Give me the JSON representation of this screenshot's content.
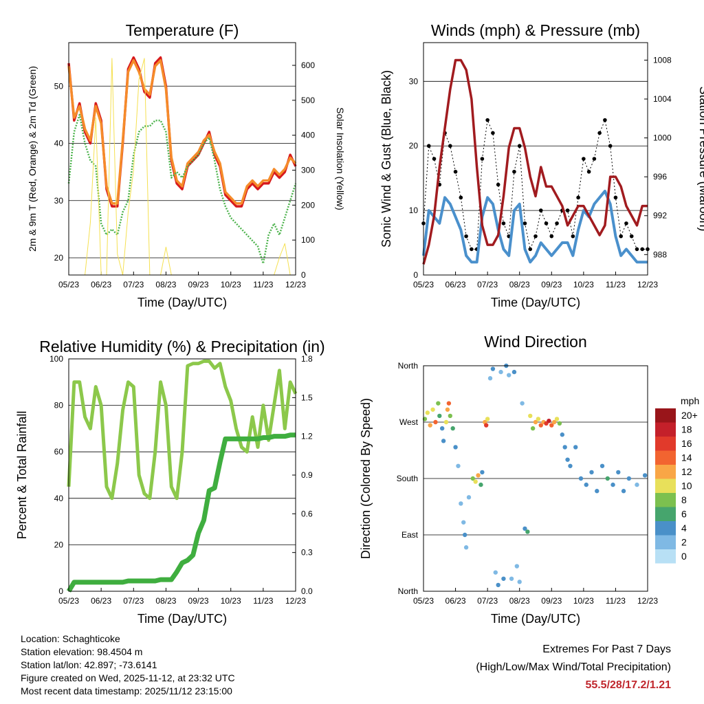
{
  "x_ticks": [
    "05/23",
    "06/23",
    "07/23",
    "08/23",
    "09/23",
    "10/23",
    "11/23",
    "12/23"
  ],
  "x_label": "Time (Day/UTC)",
  "chart_data": [
    {
      "type": "line",
      "title": "Temperature (F)",
      "ylabel": "2m & 9m T (Red, Orange) & 2m Td (Green)",
      "ylabel_right": "Solar Insolation (Yellow)",
      "xlim": [
        0,
        168
      ],
      "ylim": [
        17,
        57.6
      ],
      "ylim_right": [
        0,
        665
      ],
      "yticks": [
        20,
        30,
        40,
        50
      ],
      "yticks_right": [
        0,
        100,
        200,
        300,
        400,
        500,
        600
      ],
      "x_step_hours": 4,
      "series": [
        {
          "name": "2m T",
          "color": "#d7191c",
          "values": [
            54,
            44,
            47,
            42,
            40,
            47,
            44,
            32,
            29,
            29,
            40,
            53,
            55,
            53,
            49,
            48,
            54,
            55,
            50,
            37,
            33,
            32,
            36,
            37,
            38,
            40,
            42,
            38,
            36,
            31,
            30,
            29,
            29,
            32,
            33,
            32,
            33,
            33,
            35,
            34,
            35,
            38,
            36
          ]
        },
        {
          "name": "9m T",
          "color": "#f58b2a",
          "values": [
            53.5,
            44.5,
            46.5,
            42.5,
            40.5,
            46.5,
            43.5,
            32.5,
            29.5,
            29.5,
            40.5,
            52.5,
            54.5,
            52.5,
            49.5,
            48.5,
            53.5,
            54.5,
            49.5,
            37.5,
            33.5,
            32.5,
            36.5,
            37.5,
            38.5,
            40.5,
            41.5,
            38.5,
            36.5,
            31.5,
            30.5,
            29.5,
            29.5,
            32.5,
            33.5,
            32.5,
            33.5,
            33.5,
            35.5,
            34.5,
            35.5,
            37.5,
            36.5
          ]
        },
        {
          "name": "2m Td",
          "color": "#4db34d",
          "values": [
            33,
            42,
            45,
            40,
            37,
            36,
            26,
            24,
            25,
            24,
            28,
            30,
            38,
            42,
            43,
            43,
            44,
            44,
            42,
            34,
            35,
            34,
            36,
            37,
            38,
            40,
            41,
            37,
            32,
            29,
            27,
            26,
            25,
            24,
            23,
            22,
            19,
            24,
            26,
            24,
            27,
            30,
            33
          ]
        },
        {
          "name": "Solar",
          "color": "#f5e050",
          "axis": "right",
          "values": [
            0,
            0,
            0,
            0,
            150,
            450,
            0,
            0,
            620,
            60,
            0,
            180,
            300,
            560,
            620,
            0,
            0,
            0,
            80,
            0,
            0,
            0,
            0,
            0,
            0,
            0,
            0,
            0,
            0,
            0,
            0,
            0,
            0,
            0,
            0,
            0,
            0,
            0,
            0,
            50,
            90,
            0,
            0
          ]
        }
      ]
    },
    {
      "type": "line+scatter",
      "title": "Winds (mph) & Pressure (mb)",
      "ylabel": "Sonic Wind & Gust (Blue, Black)",
      "ylabel_right": "Station Pressure (Maroon)",
      "xlim": [
        0,
        168
      ],
      "ylim": [
        0,
        36
      ],
      "ylim_right": [
        985.9,
        1009.8
      ],
      "yticks": [
        0,
        10,
        20,
        30
      ],
      "yticks_right": [
        988,
        992,
        996,
        1000,
        1004,
        1008
      ],
      "x_step_hours": 4,
      "series": [
        {
          "name": "Gust",
          "color": "#000000",
          "values": [
            8,
            20,
            18,
            14,
            22,
            20,
            16,
            12,
            6,
            4,
            4,
            18,
            24,
            22,
            14,
            8,
            6,
            16,
            20,
            8,
            4,
            6,
            10,
            8,
            6,
            8,
            10,
            10,
            6,
            12,
            18,
            16,
            18,
            22,
            24,
            20,
            12,
            6,
            8,
            6,
            4,
            4,
            4
          ]
        },
        {
          "name": "Wind",
          "color": "#4a90cc",
          "values": [
            3,
            10,
            9,
            8,
            12,
            11,
            9,
            7,
            3,
            2,
            2,
            9,
            12,
            11,
            7,
            4,
            3,
            10,
            11,
            4,
            2,
            3,
            5,
            4,
            3,
            4,
            5,
            5,
            3,
            7,
            10,
            9,
            11,
            12,
            13,
            11,
            6,
            3,
            4,
            3,
            2,
            2,
            2
          ]
        },
        {
          "name": "Pressure",
          "color": "#a11b1f",
          "axis": "right",
          "values": [
            987,
            989,
            992,
            997,
            1001,
            1005,
            1008,
            1008,
            1007,
            1004,
            997,
            991,
            989,
            989,
            990,
            994,
            999,
            1001,
            1001,
            999,
            996,
            994,
            997,
            995,
            995,
            994,
            993,
            991,
            992,
            993,
            993,
            992,
            991,
            990,
            991,
            996,
            996,
            995,
            993,
            992,
            991,
            993,
            993
          ]
        }
      ]
    },
    {
      "type": "line",
      "title": "Relative Humidity (%) & Precipitation (in)",
      "ylabel": "Percent & Total Rainfall",
      "xlim": [
        0,
        168
      ],
      "ylim": [
        0,
        100
      ],
      "ylim_right": [
        0,
        1.8
      ],
      "yticks": [
        0,
        20,
        40,
        60,
        80,
        100
      ],
      "yticks_right": [
        "0.0",
        "0.3",
        "0.6",
        "0.9",
        "1.2",
        "1.5",
        "1.8"
      ],
      "x_step_hours": 4,
      "series": [
        {
          "name": "RH",
          "color": "#8cc84b",
          "values": [
            45,
            90,
            90,
            75,
            70,
            88,
            80,
            45,
            40,
            55,
            78,
            90,
            88,
            50,
            42,
            40,
            60,
            90,
            80,
            45,
            40,
            60,
            97,
            98,
            98,
            99,
            99,
            96,
            98,
            88,
            82,
            70,
            62,
            60,
            75,
            62,
            80,
            65,
            80,
            95,
            70,
            90,
            85
          ]
        },
        {
          "name": "Precip",
          "color": "#3fae3f",
          "axis": "right",
          "values": [
            0,
            0.07,
            0.07,
            0.07,
            0.07,
            0.07,
            0.07,
            0.07,
            0.07,
            0.07,
            0.07,
            0.08,
            0.08,
            0.08,
            0.08,
            0.08,
            0.08,
            0.09,
            0.09,
            0.09,
            0.15,
            0.22,
            0.24,
            0.28,
            0.45,
            0.55,
            0.78,
            0.8,
            1.0,
            1.18,
            1.18,
            1.18,
            1.18,
            1.18,
            1.18,
            1.18,
            1.19,
            1.19,
            1.2,
            1.2,
            1.2,
            1.21,
            1.21
          ]
        }
      ]
    },
    {
      "type": "scatter",
      "title": "Wind Direction",
      "ylabel": "Direction (Colored By Speed)",
      "xlim": [
        0,
        168
      ],
      "ylim": [
        0,
        360
      ],
      "yticks": [
        {
          "v": 360,
          "label": "North"
        },
        {
          "v": 270,
          "label": "West"
        },
        {
          "v": 180,
          "label": "South"
        },
        {
          "v": 90,
          "label": "East"
        },
        {
          "v": 0,
          "label": "North"
        }
      ],
      "points": [
        [
          1,
          275,
          8
        ],
        [
          3,
          285,
          10
        ],
        [
          5,
          265,
          12
        ],
        [
          7,
          290,
          9
        ],
        [
          9,
          270,
          14
        ],
        [
          11,
          300,
          8
        ],
        [
          12,
          280,
          6
        ],
        [
          14,
          260,
          4
        ],
        [
          15,
          240,
          3
        ],
        [
          17,
          270,
          10
        ],
        [
          18,
          290,
          12
        ],
        [
          19,
          300,
          14
        ],
        [
          20,
          280,
          8
        ],
        [
          22,
          260,
          6
        ],
        [
          24,
          230,
          3
        ],
        [
          26,
          200,
          2
        ],
        [
          28,
          140,
          2
        ],
        [
          30,
          110,
          2
        ],
        [
          31,
          90,
          3
        ],
        [
          32,
          70,
          1
        ],
        [
          34,
          150,
          1
        ],
        [
          37,
          180,
          8
        ],
        [
          39,
          175,
          10
        ],
        [
          41,
          185,
          12
        ],
        [
          43,
          170,
          6
        ],
        [
          44,
          190,
          4
        ],
        [
          46,
          270,
          12
        ],
        [
          47,
          265,
          16
        ],
        [
          48,
          275,
          10
        ],
        [
          50,
          340,
          2
        ],
        [
          52,
          355,
          3
        ],
        [
          54,
          30,
          2
        ],
        [
          56,
          10,
          3
        ],
        [
          58,
          350,
          2
        ],
        [
          60,
          20,
          3
        ],
        [
          62,
          360,
          3
        ],
        [
          64,
          345,
          2
        ],
        [
          66,
          20,
          2
        ],
        [
          68,
          350,
          3
        ],
        [
          70,
          40,
          2
        ],
        [
          72,
          15,
          2
        ],
        [
          74,
          300,
          2
        ],
        [
          76,
          100,
          4
        ],
        [
          78,
          95,
          5
        ],
        [
          80,
          280,
          10
        ],
        [
          82,
          260,
          8
        ],
        [
          84,
          270,
          12
        ],
        [
          86,
          275,
          10
        ],
        [
          88,
          265,
          14
        ],
        [
          90,
          270,
          12
        ],
        [
          92,
          268,
          16
        ],
        [
          94,
          272,
          18
        ],
        [
          96,
          265,
          14
        ],
        [
          98,
          270,
          12
        ],
        [
          100,
          275,
          10
        ],
        [
          102,
          268,
          8
        ],
        [
          104,
          250,
          4
        ],
        [
          106,
          230,
          3
        ],
        [
          108,
          210,
          4
        ],
        [
          110,
          200,
          3
        ],
        [
          114,
          230,
          3
        ],
        [
          118,
          180,
          4
        ],
        [
          122,
          170,
          3
        ],
        [
          126,
          190,
          4
        ],
        [
          130,
          160,
          3
        ],
        [
          134,
          200,
          4
        ],
        [
          138,
          180,
          5
        ],
        [
          142,
          170,
          4
        ],
        [
          146,
          190,
          3
        ],
        [
          150,
          160,
          4
        ],
        [
          154,
          180,
          3
        ],
        [
          160,
          170,
          2
        ],
        [
          166,
          185,
          3
        ]
      ],
      "legend": {
        "title": "mph",
        "labels": [
          "20+",
          "18",
          "16",
          "14",
          "12",
          "10",
          "8",
          "6",
          "4",
          "2",
          "0"
        ],
        "colors": [
          "#99151a",
          "#c4202a",
          "#e13a2b",
          "#f26430",
          "#f9a646",
          "#e8e05a",
          "#7cc04f",
          "#46a56d",
          "#4a90c8",
          "#7fb9e4",
          "#b8e0f5"
        ]
      }
    }
  ],
  "station": {
    "location": "Location: Schaghticoke",
    "elevation": "Station elevation: 98.4504 m",
    "latlon": "Station lat/lon: 42.897; -73.6141",
    "created": "Figure created on Wed, 2025-11-12, at 23:32 UTC",
    "timestamp": "Most recent data timestamp: 2025/11/12 23:15:00"
  },
  "extremes": {
    "title": "Extremes For Past 7 Days",
    "subtitle": "(High/Low/Max Wind/Total Precipitation)",
    "values": "55.5/28/17.2/1.21"
  }
}
